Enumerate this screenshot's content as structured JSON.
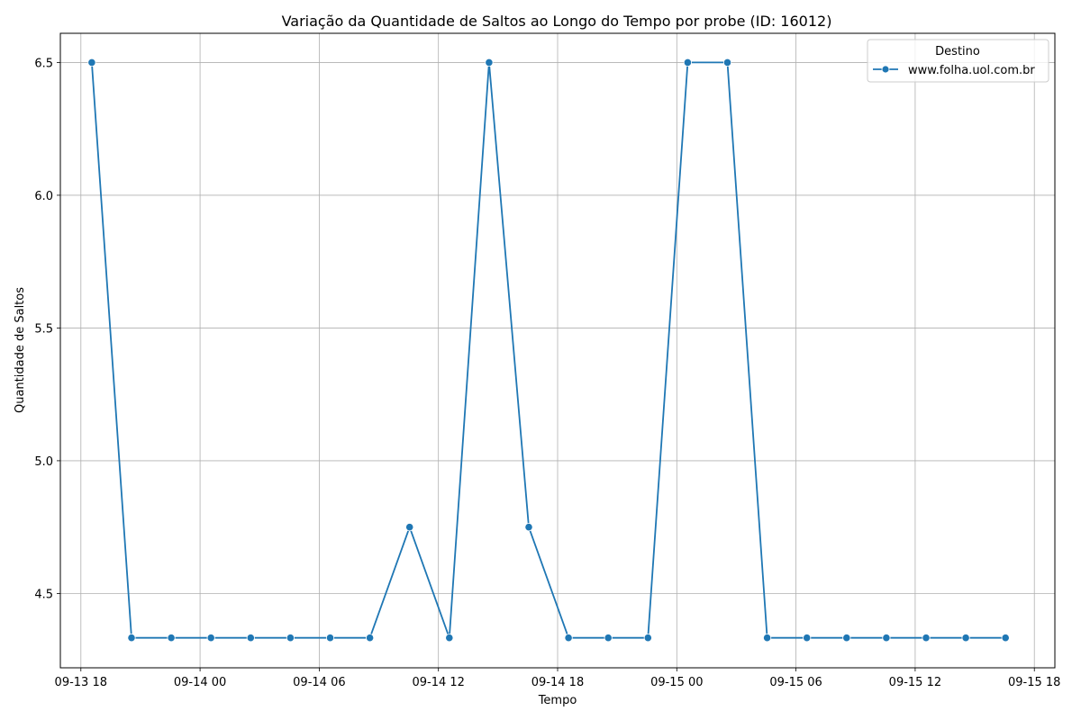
{
  "chart_data": {
    "type": "line",
    "title": "Variação da Quantidade de Saltos ao Longo do Tempo por probe (ID: 16012)",
    "xlabel": "Tempo",
    "ylabel": "Quantidade de Saltos",
    "x_ticks": [
      "09-13 18",
      "09-14 00",
      "09-14 06",
      "09-14 12",
      "09-14 18",
      "09-15 00",
      "09-15 06",
      "09-15 12",
      "09-15 18"
    ],
    "y_ticks": [
      "4.5",
      "5.0",
      "5.5",
      "6.0",
      "6.5"
    ],
    "xlim": [
      "2024-09-13 16:58",
      "2024-09-15 19:02"
    ],
    "ylim": [
      4.22,
      6.61
    ],
    "grid": true,
    "legend": {
      "title": "Destino",
      "position": "top-right"
    },
    "series": [
      {
        "name": "www.folha.uol.com.br",
        "color": "#1f77b4",
        "x": [
          "2024-09-13 18:33",
          "2024-09-13 20:33",
          "2024-09-13 22:33",
          "2024-09-14 00:33",
          "2024-09-14 02:33",
          "2024-09-14 04:33",
          "2024-09-14 06:33",
          "2024-09-14 08:33",
          "2024-09-14 10:33",
          "2024-09-14 12:33",
          "2024-09-14 14:33",
          "2024-09-14 16:33",
          "2024-09-14 18:33",
          "2024-09-14 20:33",
          "2024-09-14 22:33",
          "2024-09-15 00:33",
          "2024-09-15 02:33",
          "2024-09-15 04:33",
          "2024-09-15 06:33",
          "2024-09-15 08:33",
          "2024-09-15 10:33",
          "2024-09-15 12:33",
          "2024-09-15 14:33",
          "2024-09-15 16:33"
        ],
        "values": [
          6.5,
          4.333,
          4.333,
          4.333,
          4.333,
          4.333,
          4.333,
          4.333,
          4.75,
          4.333,
          6.5,
          4.75,
          4.333,
          4.333,
          4.333,
          6.5,
          6.5,
          4.333,
          4.333,
          4.333,
          4.333,
          4.333,
          4.333,
          4.333
        ]
      }
    ]
  }
}
